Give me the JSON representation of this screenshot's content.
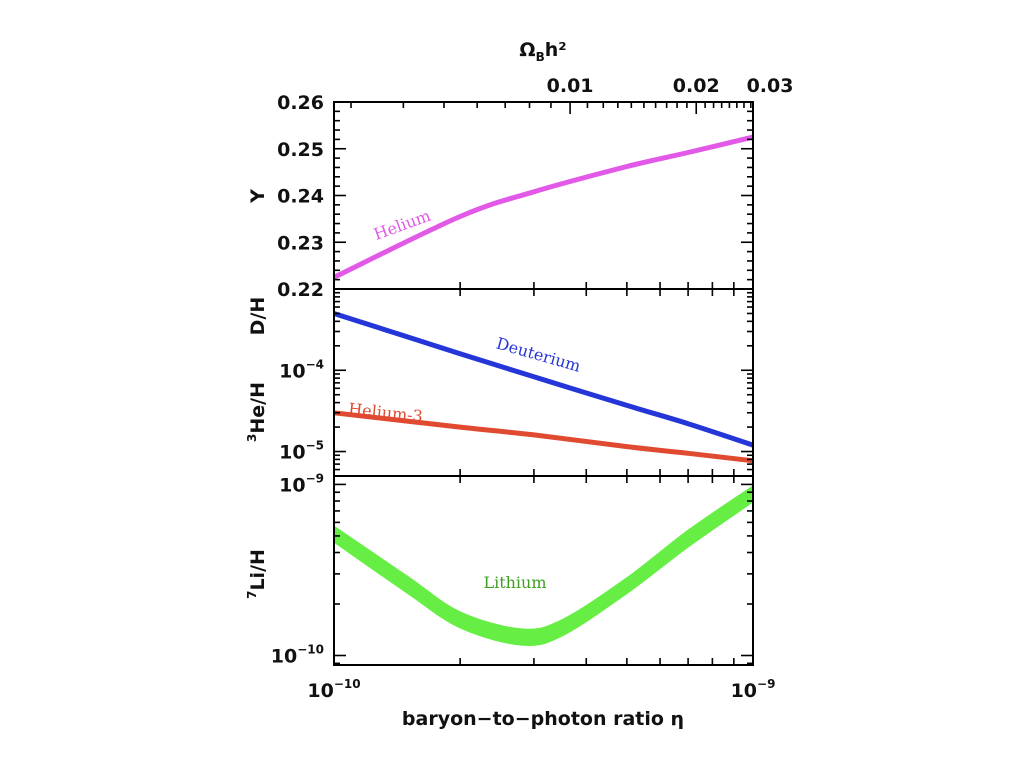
{
  "chart_data": [
    {
      "panel": "helium",
      "type": "line",
      "x_scale": "log",
      "xlim": [
        1e-10,
        1e-09
      ],
      "ylabel": "Y",
      "ylim": [
        0.22,
        0.26
      ],
      "y_ticks": [
        0.22,
        0.23,
        0.24,
        0.25,
        0.26
      ],
      "y_tick_labels": [
        "0.22",
        "0.23",
        "0.24",
        "0.25",
        "0.26"
      ],
      "top_axis": {
        "label_main": "Ω",
        "label_sub": "B",
        "label_rest": "h²",
        "ticks": [
          0.01,
          0.02,
          0.03
        ],
        "tick_labels": [
          "0.01",
          "0.02",
          "0.03"
        ]
      },
      "series": [
        {
          "name": "Helium",
          "color": "#e259e8",
          "x": [
            1e-10,
            2e-10,
            3e-10,
            5e-10,
            7e-10,
            1e-09
          ],
          "y": [
            0.2225,
            0.2355,
            0.2408,
            0.2462,
            0.2492,
            0.2525
          ]
        }
      ]
    },
    {
      "panel": "deuterium-helium3",
      "type": "line",
      "x_scale": "log",
      "y_scale": "log",
      "xlim": [
        1e-10,
        1e-09
      ],
      "ylabel_top": "D/H",
      "ylabel_bottom_sup": "3",
      "ylabel_bottom": "He/H",
      "y_ticks": [
        0.0001,
        1e-05
      ],
      "y_tick_base": "10",
      "y_tick_exps": [
        "−4",
        "−5"
      ],
      "series": [
        {
          "name": "Deuterium",
          "color": "#2436d8",
          "x": [
            1e-10,
            2e-10,
            3e-10,
            5e-10,
            7e-10,
            1e-09
          ],
          "y": [
            0.0005,
            0.00016,
            8.3e-05,
            3.7e-05,
            2.2e-05,
            1.2e-05
          ]
        },
        {
          "name": "Helium-3",
          "color": "#e04a30",
          "x": [
            1e-10,
            2e-10,
            3e-10,
            5e-10,
            7e-10,
            1e-09
          ],
          "y": [
            3e-05,
            2e-05,
            1.6e-05,
            1.15e-05,
            9.5e-06,
            7.7e-06
          ]
        }
      ]
    },
    {
      "panel": "lithium",
      "type": "area",
      "x_scale": "log",
      "y_scale": "log",
      "xlim": [
        1e-10,
        1e-09
      ],
      "xlabel": "baryon−to−photon ratio  η",
      "x_tick_base": "10",
      "x_tick_exps": [
        "−10",
        "−9"
      ],
      "ylabel_sup": "7",
      "ylabel": "Li/H",
      "y_ticks": [
        1e-10,
        1e-09
      ],
      "y_tick_base": "10",
      "y_tick_exps": [
        "−10",
        "−9"
      ],
      "series": [
        {
          "name": "Lithium",
          "color": "#66ee44",
          "x": [
            1e-10,
            1.5e-10,
            2e-10,
            2.8e-10,
            3.5e-10,
            5e-10,
            7e-10,
            1e-09
          ],
          "y_low": [
            4.6e-10,
            2.3e-10,
            1.45e-10,
            1.15e-10,
            1.3e-10,
            2.3e-10,
            4.3e-10,
            7.9e-10
          ],
          "y_high": [
            5.7e-10,
            2.9e-10,
            1.8e-10,
            1.43e-10,
            1.62e-10,
            2.85e-10,
            5.4e-10,
            9.8e-10
          ]
        }
      ]
    }
  ]
}
